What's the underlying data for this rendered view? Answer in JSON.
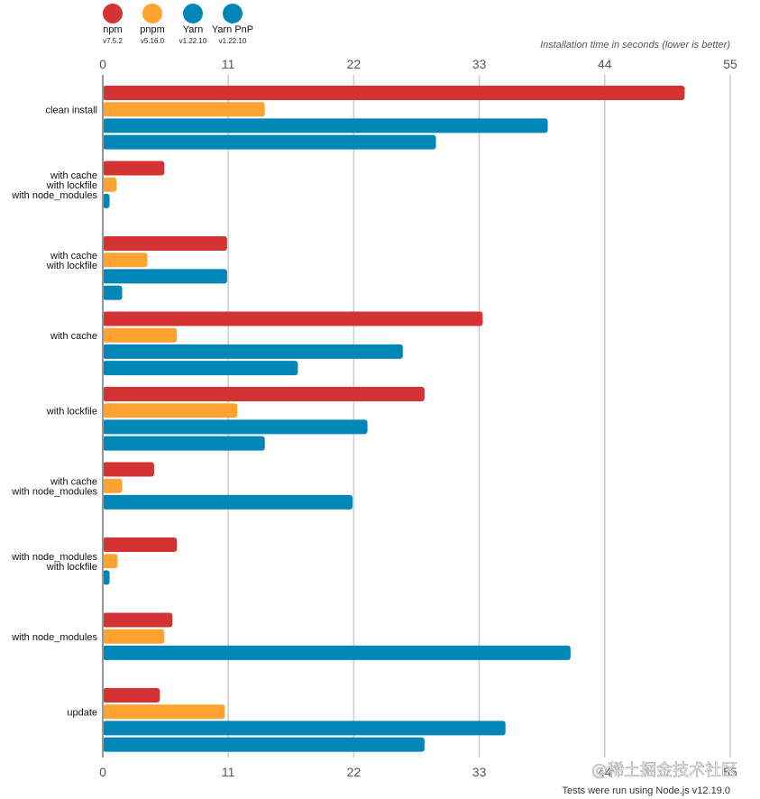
{
  "chart_data": {
    "type": "bar",
    "orientation": "horizontal",
    "axis_title": "Installation time in seconds (lower is better)",
    "xlim": [
      0,
      55
    ],
    "ticks": [
      "0",
      "11",
      "22",
      "33",
      "44",
      "55"
    ],
    "grid": true,
    "legend_position": "top-left",
    "categories": [
      [
        "clean install"
      ],
      [
        "with cache",
        "with lockfile",
        "with node_modules"
      ],
      [
        "with cache",
        "with lockfile"
      ],
      [
        "with cache"
      ],
      [
        "with lockfile"
      ],
      [
        "with cache",
        "with node_modules"
      ],
      [
        "with node_modules",
        "with lockfile"
      ],
      [
        "with node_modules"
      ],
      [
        "update"
      ]
    ],
    "series": [
      {
        "name": "npm",
        "version": "v7.5.2",
        "color": "#d33333",
        "values": [
          51,
          5.4,
          10.9,
          33.3,
          28.2,
          4.5,
          6.5,
          6.1,
          5
        ]
      },
      {
        "name": "pnpm",
        "version": "v5.16.0",
        "color": "#ffa330",
        "values": [
          14.2,
          1.2,
          3.9,
          6.5,
          11.8,
          1.7,
          1.3,
          5.4,
          10.7
        ]
      },
      {
        "name": "Yarn",
        "version": "v1.22.10",
        "color": "#0087b8",
        "values": [
          39,
          0.6,
          10.9,
          26.3,
          23.2,
          21.9,
          0.6,
          41,
          35.3
        ]
      },
      {
        "name": "Yarn PnP",
        "version": "v1.22.10",
        "color": "#0087b8",
        "values": [
          29.2,
          0,
          1.7,
          17.1,
          14.2,
          0,
          0,
          0,
          28.2
        ]
      }
    ],
    "footnote": "Tests were run using Node.js v12.19.0"
  },
  "watermark": "@稀土掘金技术社区"
}
